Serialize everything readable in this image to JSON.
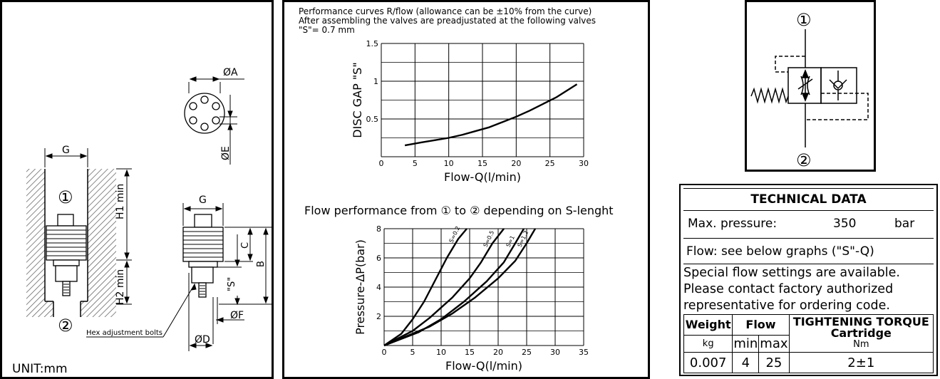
{
  "dimension_drawing": {
    "labels": {
      "G_left": "G",
      "G_right": "G",
      "phiA": "ØA",
      "phiE": "ØE",
      "phiF": "ØF",
      "phiD": "ØD",
      "H1": "H1 min",
      "H2": "H2 min",
      "B": "B",
      "C": "C",
      "S": "\"S\"",
      "port1": "①",
      "port2": "②",
      "hex_note": "Hex adjustment bolts",
      "unit": "UNIT:mm"
    }
  },
  "curves": {
    "note_line1": "Performance curves R/flow (allowance can be ±10% from the curve)",
    "note_line2": "After assembling the valves are preadjustated at the following valves",
    "note_line3": "\"S\"= 0.7 mm",
    "title2": "Flow performance from ① to ② depending on S-lenght"
  },
  "chart_data": [
    {
      "type": "line",
      "xlabel": "Flow-Q(l/min)",
      "ylabel": "DISC GAP \"S\"",
      "xlim": [
        0,
        30
      ],
      "ylim": [
        0,
        1.5
      ],
      "x_ticks": [
        "0",
        "5",
        "10",
        "15",
        "20",
        "25",
        "30"
      ],
      "y_ticks": [
        "0.5",
        "1",
        "1.5"
      ],
      "grid": true,
      "series": [
        {
          "x": [
            3.5,
            6,
            8,
            10,
            12,
            14,
            16,
            18,
            20,
            22,
            24,
            26,
            29
          ],
          "y": [
            0.15,
            0.19,
            0.22,
            0.25,
            0.29,
            0.34,
            0.39,
            0.46,
            0.53,
            0.61,
            0.7,
            0.79,
            0.96
          ]
        }
      ]
    },
    {
      "type": "line",
      "xlabel": "Flow-Q(l/min)",
      "ylabel": "Pressure-ΔP(bar)",
      "xlim": [
        0,
        35
      ],
      "ylim": [
        0,
        8
      ],
      "x_ticks": [
        "0",
        "5",
        "10",
        "15",
        "20",
        "25",
        "30",
        "35"
      ],
      "y_ticks": [
        "2",
        "4",
        "6",
        "8"
      ],
      "grid": true,
      "series": [
        {
          "name": "S=0.2",
          "x": [
            0,
            3,
            5,
            7,
            9,
            11,
            13,
            14.5
          ],
          "y": [
            0,
            0.8,
            1.8,
            3.0,
            4.5,
            6.0,
            7.3,
            8.0
          ]
        },
        {
          "name": "S=0.5",
          "x": [
            0,
            5,
            8,
            12,
            15,
            17,
            19,
            21
          ],
          "y": [
            0,
            1.0,
            1.9,
            3.3,
            4.6,
            5.7,
            7.0,
            8.0
          ]
        },
        {
          "name": "S=1",
          "x": [
            0,
            6,
            10,
            14,
            18,
            21,
            23,
            24.5
          ],
          "y": [
            0,
            0.9,
            1.8,
            3.0,
            4.4,
            5.7,
            7.0,
            8.0
          ]
        },
        {
          "name": "S=1.2",
          "x": [
            0,
            8,
            12,
            16,
            20,
            23,
            25,
            26.5
          ],
          "y": [
            0,
            1.3,
            2.2,
            3.3,
            4.6,
            5.8,
            7.0,
            8.0
          ]
        }
      ]
    }
  ],
  "symbol": {
    "port_in": "①",
    "port_out": "②"
  },
  "tech": {
    "title": "TECHNICAL DATA",
    "pressure_label": "Max. pressure:",
    "pressure_value": "350",
    "pressure_unit": "bar",
    "flow_text": "Flow: see below graphs (\"S\"-Q)",
    "special_1": "Special flow settings are available.",
    "special_2": "Please contact factory authorized",
    "special_3": "representative for ordering code.",
    "table": {
      "weight_header": "Weight",
      "weight_unit": "kg",
      "weight_value": "0.007",
      "flow_header": "Flow",
      "flow_min_header": "min",
      "flow_max_header": "max",
      "flow_min": "4",
      "flow_max": "25",
      "torque_header": "TIGHTENING TORQUE",
      "torque_sub": "Cartridge",
      "torque_unit": "Nm",
      "torque_value": "2±1"
    }
  }
}
